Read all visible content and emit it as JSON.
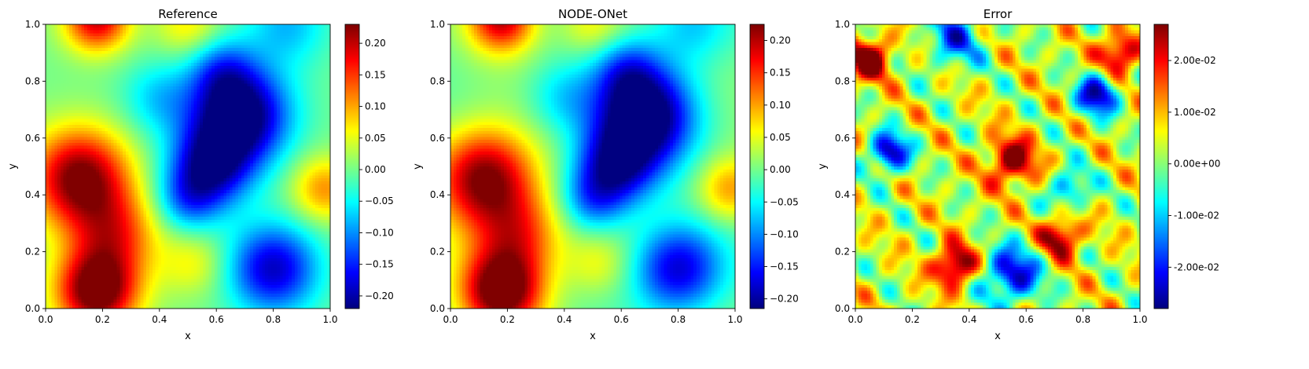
{
  "chart_data": [
    {
      "type": "heatmap",
      "title": "Reference",
      "xlabel": "x",
      "ylabel": "y",
      "xlim": [
        0,
        1
      ],
      "ylim": [
        0,
        1
      ],
      "xticks": [
        "0.0",
        "0.2",
        "0.4",
        "0.6",
        "0.8",
        "1.0"
      ],
      "yticks": [
        "0.0",
        "0.2",
        "0.4",
        "0.6",
        "0.8",
        "1.0"
      ],
      "colormap": "jet",
      "colorbar": {
        "range": [
          -0.22,
          0.23
        ],
        "ticks": [
          {
            "value": -0.2,
            "label": "−0.20"
          },
          {
            "value": -0.15,
            "label": "−0.15"
          },
          {
            "value": -0.1,
            "label": "−0.10"
          },
          {
            "value": -0.05,
            "label": "−0.05"
          },
          {
            "value": 0.0,
            "label": "0.00"
          },
          {
            "value": 0.05,
            "label": "0.05"
          },
          {
            "value": 0.1,
            "label": "0.10"
          },
          {
            "value": 0.15,
            "label": "0.15"
          },
          {
            "value": 0.2,
            "label": "0.20"
          }
        ]
      }
    },
    {
      "type": "heatmap",
      "title": "NODE-ONet",
      "xlabel": "x",
      "ylabel": "y",
      "xlim": [
        0,
        1
      ],
      "ylim": [
        0,
        1
      ],
      "xticks": [
        "0.0",
        "0.2",
        "0.4",
        "0.6",
        "0.8",
        "1.0"
      ],
      "yticks": [
        "0.0",
        "0.2",
        "0.4",
        "0.6",
        "0.8",
        "1.0"
      ],
      "colormap": "jet",
      "colorbar": {
        "range": [
          -0.215,
          0.225
        ],
        "ticks": [
          {
            "value": -0.2,
            "label": "−0.20"
          },
          {
            "value": -0.15,
            "label": "−0.15"
          },
          {
            "value": -0.1,
            "label": "−0.10"
          },
          {
            "value": -0.05,
            "label": "−0.05"
          },
          {
            "value": 0.0,
            "label": "0.00"
          },
          {
            "value": 0.05,
            "label": "0.05"
          },
          {
            "value": 0.1,
            "label": "0.10"
          },
          {
            "value": 0.15,
            "label": "0.15"
          },
          {
            "value": 0.2,
            "label": "0.20"
          }
        ]
      }
    },
    {
      "type": "heatmap",
      "title": "Error",
      "xlabel": "x",
      "ylabel": "y",
      "xlim": [
        0,
        1
      ],
      "ylim": [
        0,
        1
      ],
      "xticks": [
        "0.0",
        "0.2",
        "0.4",
        "0.6",
        "0.8",
        "1.0"
      ],
      "yticks": [
        "0.0",
        "0.2",
        "0.4",
        "0.6",
        "0.8",
        "1.0"
      ],
      "colormap": "jet",
      "colorbar": {
        "range": [
          -0.028,
          0.027
        ],
        "ticks": [
          {
            "value": -0.02,
            "label": "-2.00e-02"
          },
          {
            "value": -0.01,
            "label": "-1.00e-02"
          },
          {
            "value": 0.0,
            "label": "0.00e+00"
          },
          {
            "value": 0.01,
            "label": "1.00e-02"
          },
          {
            "value": 0.02,
            "label": "2.00e-02"
          }
        ]
      }
    }
  ]
}
